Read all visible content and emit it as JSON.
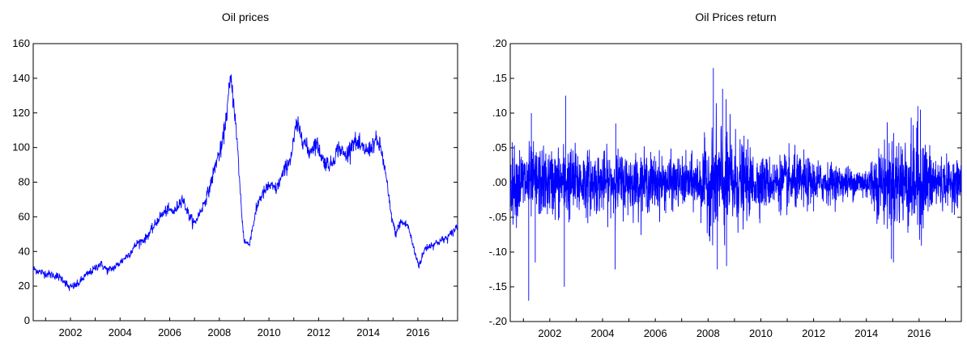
{
  "chart_data": [
    {
      "type": "line",
      "title": "Oil prices",
      "xlabel": "",
      "ylabel": "",
      "xlim": [
        2000.5,
        2017.6
      ],
      "ylim": [
        0,
        160
      ],
      "yticks": [
        0,
        20,
        40,
        60,
        80,
        100,
        120,
        140,
        160
      ],
      "ytick_labels": [
        "0",
        "20",
        "40",
        "60",
        "80",
        "100",
        "120",
        "140",
        "160"
      ],
      "xticks": [
        2002,
        2004,
        2006,
        2008,
        2010,
        2012,
        2014,
        2016
      ],
      "xtick_labels": [
        "2002",
        "2004",
        "2006",
        "2008",
        "2010",
        "2012",
        "2014",
        "2016"
      ],
      "grid": false,
      "color": "#0000ff",
      "series": [
        {
          "x": [
            2000.5,
            2000.8,
            2001.1,
            2001.4,
            2001.7,
            2001.95,
            2002.3,
            2002.6,
            2002.9,
            2003.2,
            2003.5,
            2003.8,
            2004.1,
            2004.4,
            2004.7,
            2005.0,
            2005.3,
            2005.6,
            2005.9,
            2006.2,
            2006.5,
            2006.8,
            2007.0,
            2007.3,
            2007.6,
            2007.9,
            2008.1,
            2008.3,
            2008.45,
            2008.6,
            2008.75,
            2008.9,
            2009.0,
            2009.2,
            2009.4,
            2009.6,
            2009.8,
            2010.0,
            2010.3,
            2010.6,
            2010.9,
            2011.1,
            2011.3,
            2011.6,
            2011.9,
            2012.2,
            2012.5,
            2012.8,
            2013.1,
            2013.4,
            2013.7,
            2014.0,
            2014.3,
            2014.5,
            2014.7,
            2014.9,
            2015.1,
            2015.3,
            2015.6,
            2015.9,
            2016.05,
            2016.3,
            2016.6,
            2016.9,
            2017.2,
            2017.4,
            2017.6
          ],
          "y": [
            30,
            28,
            27,
            26,
            24,
            19,
            21,
            26,
            29,
            33,
            29,
            31,
            35,
            39,
            45,
            47,
            53,
            60,
            64,
            63,
            71,
            60,
            56,
            65,
            76,
            93,
            100,
            120,
            140,
            124,
            96,
            62,
            46,
            44,
            58,
            70,
            74,
            78,
            76,
            86,
            95,
            113,
            108,
            97,
            103,
            92,
            90,
            100,
            95,
            104,
            100,
            98,
            104,
            100,
            85,
            63,
            50,
            57,
            55,
            38,
            32,
            42,
            44,
            46,
            48,
            51,
            55
          ]
        }
      ]
    },
    {
      "type": "line",
      "title": "Oil Prices return",
      "xlabel": "",
      "ylabel": "",
      "xlim": [
        2000.5,
        2017.6
      ],
      "ylim": [
        -0.2,
        0.2
      ],
      "yticks": [
        -0.2,
        -0.15,
        -0.1,
        -0.05,
        0,
        0.05,
        0.1,
        0.15,
        0.2
      ],
      "ytick_labels": [
        "-.20",
        "-.15",
        "-.10",
        "-.05",
        ".00",
        ".05",
        ".10",
        ".15",
        ".20"
      ],
      "xticks": [
        2002,
        2004,
        2006,
        2008,
        2010,
        2012,
        2014,
        2016
      ],
      "xtick_labels": [
        "2002",
        "2004",
        "2006",
        "2008",
        "2010",
        "2012",
        "2014",
        "2016"
      ],
      "grid": false,
      "color": "#0000ff",
      "series": [
        {
          "x": [
            2000.5,
            2001.0,
            2001.5,
            2002.0,
            2002.5,
            2003.0,
            2003.5,
            2004.0,
            2004.5,
            2005.0,
            2005.5,
            2006.0,
            2006.5,
            2007.0,
            2007.5,
            2008.0,
            2008.5,
            2009.0,
            2009.5,
            2010.0,
            2010.5,
            2011.0,
            2011.5,
            2012.0,
            2012.5,
            2013.0,
            2013.5,
            2014.0,
            2014.5,
            2015.0,
            2015.5,
            2016.0,
            2016.5,
            2017.0,
            2017.6
          ],
          "volatility": [
            0.024,
            0.026,
            0.025,
            0.023,
            0.026,
            0.025,
            0.022,
            0.021,
            0.022,
            0.021,
            0.02,
            0.02,
            0.018,
            0.017,
            0.018,
            0.03,
            0.045,
            0.035,
            0.024,
            0.019,
            0.017,
            0.02,
            0.019,
            0.016,
            0.014,
            0.012,
            0.011,
            0.012,
            0.026,
            0.034,
            0.033,
            0.036,
            0.022,
            0.016,
            0.015
          ]
        }
      ],
      "annotated_extremes": [
        {
          "x": 2001.2,
          "y": -0.17
        },
        {
          "x": 2002.6,
          "y": 0.125
        },
        {
          "x": 2002.55,
          "y": -0.15
        },
        {
          "x": 2001.3,
          "y": 0.1
        },
        {
          "x": 2001.45,
          "y": -0.115
        },
        {
          "x": 2004.5,
          "y": 0.085
        },
        {
          "x": 2004.48,
          "y": -0.125
        },
        {
          "x": 2008.2,
          "y": 0.165
        },
        {
          "x": 2008.35,
          "y": -0.125
        },
        {
          "x": 2008.55,
          "y": 0.135
        },
        {
          "x": 2008.7,
          "y": -0.12
        },
        {
          "x": 2014.95,
          "y": -0.11
        },
        {
          "x": 2015.95,
          "y": 0.11
        },
        {
          "x": 2016.05,
          "y": 0.105
        }
      ]
    }
  ]
}
